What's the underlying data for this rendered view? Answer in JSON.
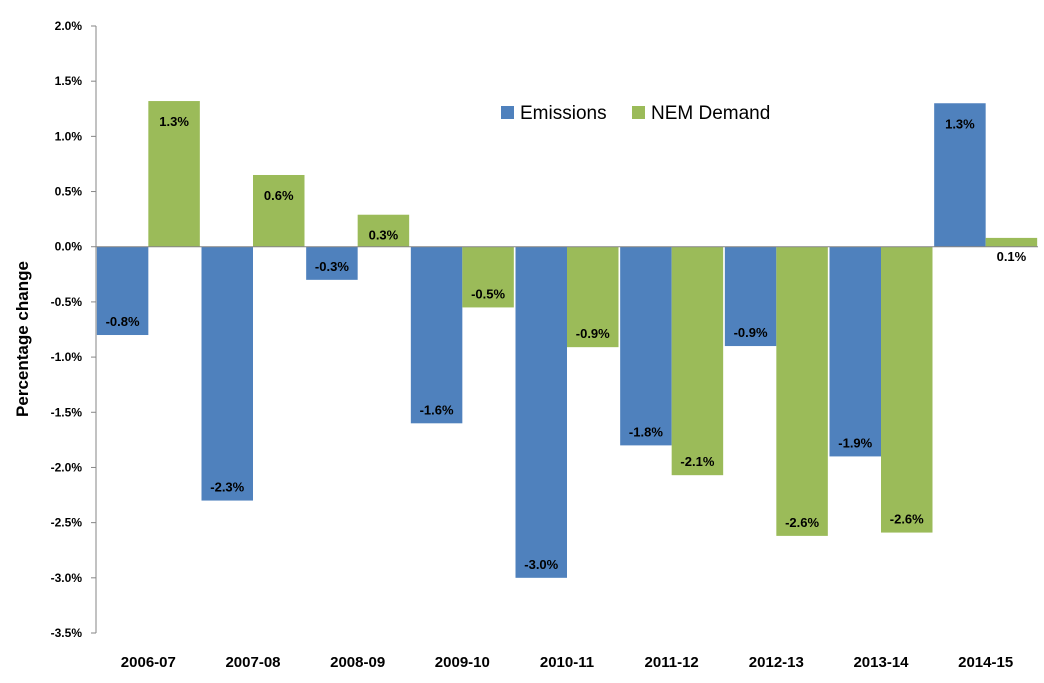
{
  "chart_data": {
    "type": "bar",
    "title": "",
    "xlabel": "",
    "ylabel": "Percentage change",
    "categories": [
      "2006-07",
      "2007-08",
      "2008-09",
      "2009-10",
      "2010-11",
      "2011-12",
      "2012-13",
      "2013-14",
      "2014-15"
    ],
    "series": [
      {
        "name": "Emissions",
        "color": "#4F81BD",
        "values": [
          -0.8,
          -2.3,
          -0.3,
          -1.6,
          -3.0,
          -1.8,
          -0.9,
          -1.9,
          1.3
        ],
        "labels": [
          "-0.8%",
          "-2.3%",
          "-0.3%",
          "-1.6%",
          "-3.0%",
          "-1.8%",
          "-0.9%",
          "-1.9%",
          "1.3%"
        ]
      },
      {
        "name": "NEM Demand",
        "color": "#9BBB59",
        "values": [
          1.32,
          0.65,
          0.29,
          -0.55,
          -0.91,
          -2.07,
          -2.62,
          -2.59,
          0.08
        ],
        "labels": [
          "1.3%",
          "0.6%",
          "0.3%",
          "-0.5%",
          "-0.9%",
          "-2.1%",
          "-2.6%",
          "-2.6%",
          "0.1%"
        ]
      }
    ],
    "ylim": [
      -3.5,
      2.0
    ],
    "yticks": [
      2.0,
      1.5,
      1.0,
      0.5,
      0.0,
      -0.5,
      -1.0,
      -1.5,
      -2.0,
      -2.5,
      -3.0,
      -3.5
    ],
    "ytick_labels": [
      "2.0%",
      "1.5%",
      "1.0%",
      "0.5%",
      "0.0%",
      "-0.5%",
      "-1.0%",
      "-1.5%",
      "-2.0%",
      "-2.5%",
      "-3.0%",
      "-3.5%"
    ],
    "grid": false,
    "legend": "top-center"
  }
}
